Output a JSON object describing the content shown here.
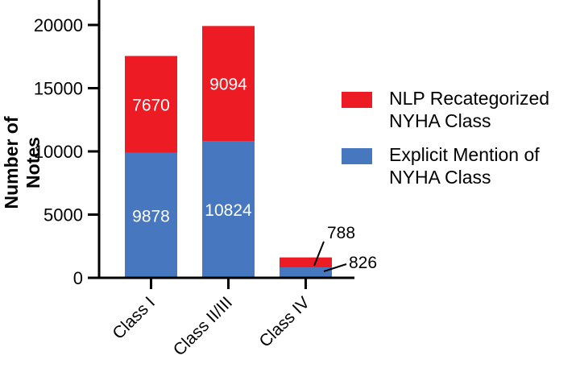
{
  "chart_data": {
    "type": "bar",
    "stacked": true,
    "title": "",
    "xlabel": "",
    "ylabel": "Number of Notes",
    "ylim": [
      0,
      20000
    ],
    "yticks": [
      0,
      5000,
      10000,
      15000,
      20000
    ],
    "categories": [
      "Class I",
      "Class II/III",
      "Class IV"
    ],
    "series": [
      {
        "name": "Explicit Mention of NYHA Class",
        "color": "#4677bf",
        "values": [
          9878,
          10824,
          826
        ]
      },
      {
        "name": "NLP Recategorized NYHA Class",
        "color": "#ed1c24",
        "values": [
          7670,
          9094,
          788
        ]
      }
    ],
    "data_labels": true,
    "grid": false,
    "legend_position": "right"
  },
  "legend": {
    "items": [
      {
        "label_line1": "NLP Recategorized",
        "label_line2": "NYHA Class",
        "color": "#ed1c24"
      },
      {
        "label_line1": "Explicit Mention of",
        "label_line2": "NYHA Class",
        "color": "#4677bf"
      }
    ]
  }
}
